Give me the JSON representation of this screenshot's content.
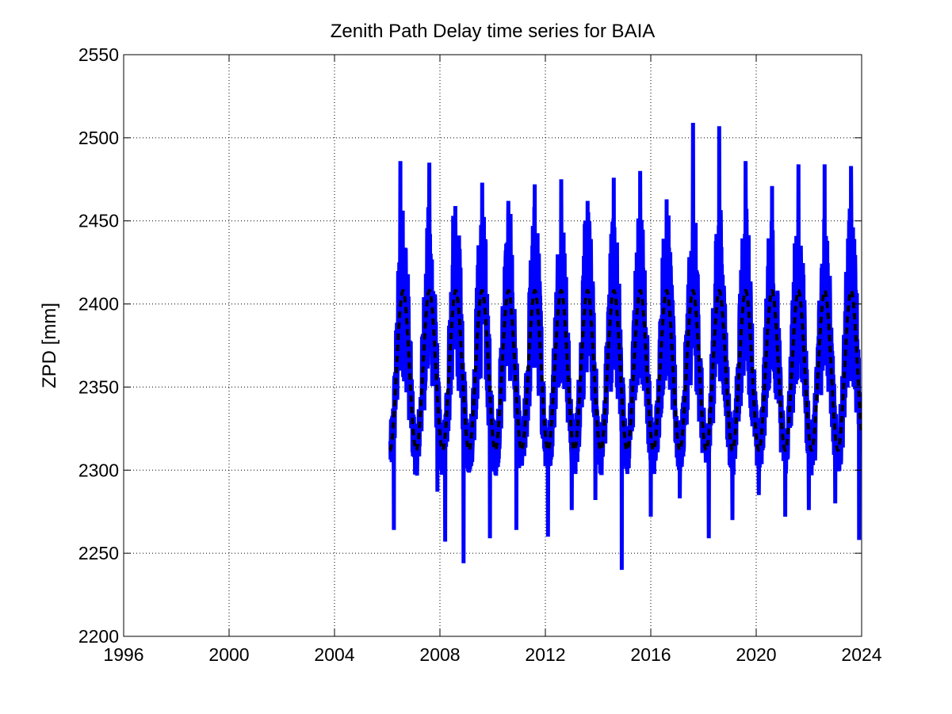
{
  "chart_data": {
    "type": "line",
    "title": "Zenith Path Delay time series for BAIA",
    "xlabel": "",
    "ylabel": "ZPD [mm]",
    "xlim": [
      1996,
      2024
    ],
    "ylim": [
      2200,
      2550
    ],
    "xticks": [
      "1996",
      "2000",
      "2004",
      "2008",
      "2012",
      "2016",
      "2020",
      "2024"
    ],
    "yticks": [
      "2200",
      "2250",
      "2300",
      "2350",
      "2400",
      "2450",
      "2500",
      "2550"
    ],
    "grid": true,
    "legend": "none",
    "data_start": 2006.0,
    "data_end": 2024.0,
    "series": [
      {
        "style": "solid",
        "color": "#0000ff",
        "description": "daily ZPD observations",
        "annual_min": [
          {
            "x": 2006.25,
            "y": 2264
          },
          {
            "x": 2007.9,
            "y": 2287
          },
          {
            "x": 2008.2,
            "y": 2257
          },
          {
            "x": 2008.9,
            "y": 2244
          },
          {
            "x": 2009.9,
            "y": 2259
          },
          {
            "x": 2010.9,
            "y": 2264
          },
          {
            "x": 2012.1,
            "y": 2260
          },
          {
            "x": 2013.0,
            "y": 2276
          },
          {
            "x": 2013.9,
            "y": 2282
          },
          {
            "x": 2014.9,
            "y": 2240
          },
          {
            "x": 2016.0,
            "y": 2272
          },
          {
            "x": 2017.1,
            "y": 2283
          },
          {
            "x": 2018.2,
            "y": 2259
          },
          {
            "x": 2019.1,
            "y": 2270
          },
          {
            "x": 2020.1,
            "y": 2285
          },
          {
            "x": 2021.1,
            "y": 2272
          },
          {
            "x": 2022.0,
            "y": 2276
          },
          {
            "x": 2023.0,
            "y": 2280
          },
          {
            "x": 2023.9,
            "y": 2258
          }
        ],
        "annual_max": [
          {
            "x": 2006.5,
            "y": 2486
          },
          {
            "x": 2007.6,
            "y": 2485
          },
          {
            "x": 2008.5,
            "y": 2453
          },
          {
            "x": 2009.6,
            "y": 2473
          },
          {
            "x": 2010.6,
            "y": 2462
          },
          {
            "x": 2011.6,
            "y": 2472
          },
          {
            "x": 2012.6,
            "y": 2475
          },
          {
            "x": 2013.6,
            "y": 2462
          },
          {
            "x": 2014.6,
            "y": 2476
          },
          {
            "x": 2015.6,
            "y": 2480
          },
          {
            "x": 2016.6,
            "y": 2463
          },
          {
            "x": 2017.6,
            "y": 2509
          },
          {
            "x": 2018.6,
            "y": 2507
          },
          {
            "x": 2019.6,
            "y": 2486
          },
          {
            "x": 2020.6,
            "y": 2471
          },
          {
            "x": 2021.6,
            "y": 2484
          },
          {
            "x": 2022.6,
            "y": 2484
          },
          {
            "x": 2023.6,
            "y": 2483
          }
        ]
      },
      {
        "style": "dashed",
        "color": "#000000",
        "description": "seasonal model fit",
        "mean": 2360,
        "amplitude": 48,
        "period": 1.0,
        "peak_phase": 0.6
      }
    ]
  }
}
